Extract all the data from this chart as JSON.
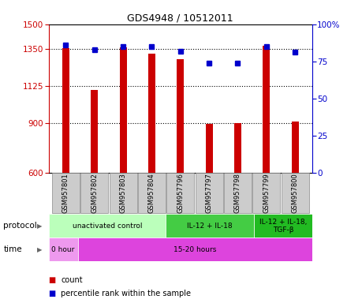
{
  "title": "GDS4948 / 10512011",
  "samples": [
    "GSM957801",
    "GSM957802",
    "GSM957803",
    "GSM957804",
    "GSM957796",
    "GSM957797",
    "GSM957798",
    "GSM957799",
    "GSM957800"
  ],
  "counts": [
    1355,
    1100,
    1360,
    1320,
    1290,
    895,
    900,
    1370,
    910
  ],
  "percentiles": [
    86,
    83,
    85,
    85,
    82,
    74,
    74,
    85,
    81
  ],
  "ylim_left": [
    600,
    1500
  ],
  "ylim_right": [
    0,
    100
  ],
  "yticks_left": [
    600,
    900,
    1125,
    1350,
    1500
  ],
  "yticks_right": [
    0,
    25,
    50,
    75,
    100
  ],
  "bar_color": "#cc0000",
  "dot_color": "#0000cc",
  "grid_color": "#000000",
  "protocol_groups": [
    {
      "label": "unactivated control",
      "start": 0,
      "end": 4,
      "color": "#bbffbb"
    },
    {
      "label": "IL-12 + IL-18",
      "start": 4,
      "end": 7,
      "color": "#44cc44"
    },
    {
      "label": "IL-12 + IL-18,\nTGF-β",
      "start": 7,
      "end": 9,
      "color": "#22bb22"
    }
  ],
  "time_groups": [
    {
      "label": "0 hour",
      "start": 0,
      "end": 1,
      "color": "#ee99ee"
    },
    {
      "label": "15-20 hours",
      "start": 1,
      "end": 9,
      "color": "#dd44dd"
    }
  ],
  "protocol_label": "protocol",
  "time_label": "time",
  "legend_count": "count",
  "legend_pct": "percentile rank within the sample"
}
